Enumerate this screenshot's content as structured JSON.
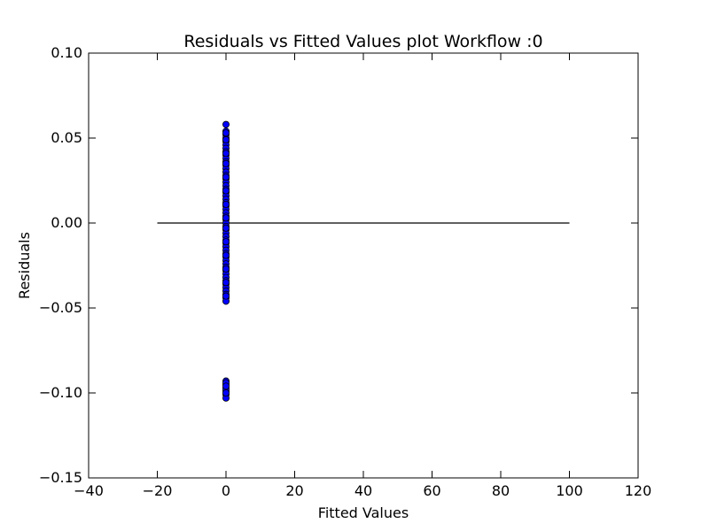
{
  "chart_data": {
    "type": "scatter",
    "title": "Residuals vs Fitted Values plot Workflow :0",
    "xlabel": "Fitted Values",
    "ylabel": "Residuals",
    "xlim": [
      -40,
      120
    ],
    "ylim": [
      -0.15,
      0.1
    ],
    "xticks": [
      -40,
      -20,
      0,
      20,
      40,
      60,
      80,
      100,
      120
    ],
    "xtick_labels": [
      "−40",
      "−20",
      "0",
      "20",
      "40",
      "60",
      "80",
      "100",
      "120"
    ],
    "yticks": [
      -0.15,
      -0.1,
      -0.05,
      0.0,
      0.05,
      0.1
    ],
    "ytick_labels": [
      "−0.15",
      "−0.10",
      "−0.05",
      "0.00",
      "0.05",
      "0.10"
    ],
    "grid": false,
    "marker_color": "#0000ff",
    "marker_edge_color": "#000000",
    "reference_line": {
      "y": 0,
      "x_start": -20,
      "x_end": 100,
      "color": "#000000"
    },
    "series": [
      {
        "x": [
          0,
          0,
          0,
          0,
          0,
          0,
          0,
          0,
          0,
          0,
          0,
          0,
          0,
          0,
          0,
          0,
          0,
          0,
          0,
          0,
          0,
          0,
          0,
          0,
          0,
          0,
          0,
          0,
          0,
          0,
          0,
          0,
          0,
          0,
          0,
          0,
          0,
          0,
          0,
          0,
          0,
          0,
          0,
          0,
          0,
          0,
          0,
          0,
          0,
          0,
          0,
          0,
          0,
          0,
          0,
          0,
          0,
          0,
          0,
          0,
          0,
          0,
          0,
          0,
          0,
          0,
          0,
          0,
          0,
          0,
          0,
          0,
          0,
          0,
          0,
          0
        ],
        "y": [
          0.058,
          0.054,
          0.052,
          0.05,
          0.048,
          0.046,
          0.044,
          0.042,
          0.04,
          0.038,
          0.036,
          0.034,
          0.032,
          0.03,
          0.028,
          0.026,
          0.024,
          0.022,
          0.02,
          0.018,
          0.016,
          0.014,
          0.012,
          0.01,
          0.008,
          0.006,
          0.004,
          0.002,
          0.0,
          -0.002,
          -0.004,
          -0.006,
          -0.008,
          -0.01,
          -0.012,
          -0.014,
          -0.016,
          -0.018,
          -0.02,
          -0.022,
          -0.024,
          -0.026,
          -0.028,
          -0.03,
          -0.032,
          -0.034,
          -0.036,
          -0.038,
          -0.04,
          -0.042,
          -0.044,
          -0.046,
          0.053,
          0.049,
          0.041,
          0.035,
          0.027,
          0.019,
          0.011,
          0.003,
          -0.003,
          -0.011,
          -0.019,
          -0.027,
          -0.035,
          -0.043,
          -0.093,
          -0.095,
          -0.097,
          -0.099,
          -0.101,
          -0.103,
          -0.094,
          -0.098,
          -0.1,
          -0.096
        ]
      }
    ]
  }
}
